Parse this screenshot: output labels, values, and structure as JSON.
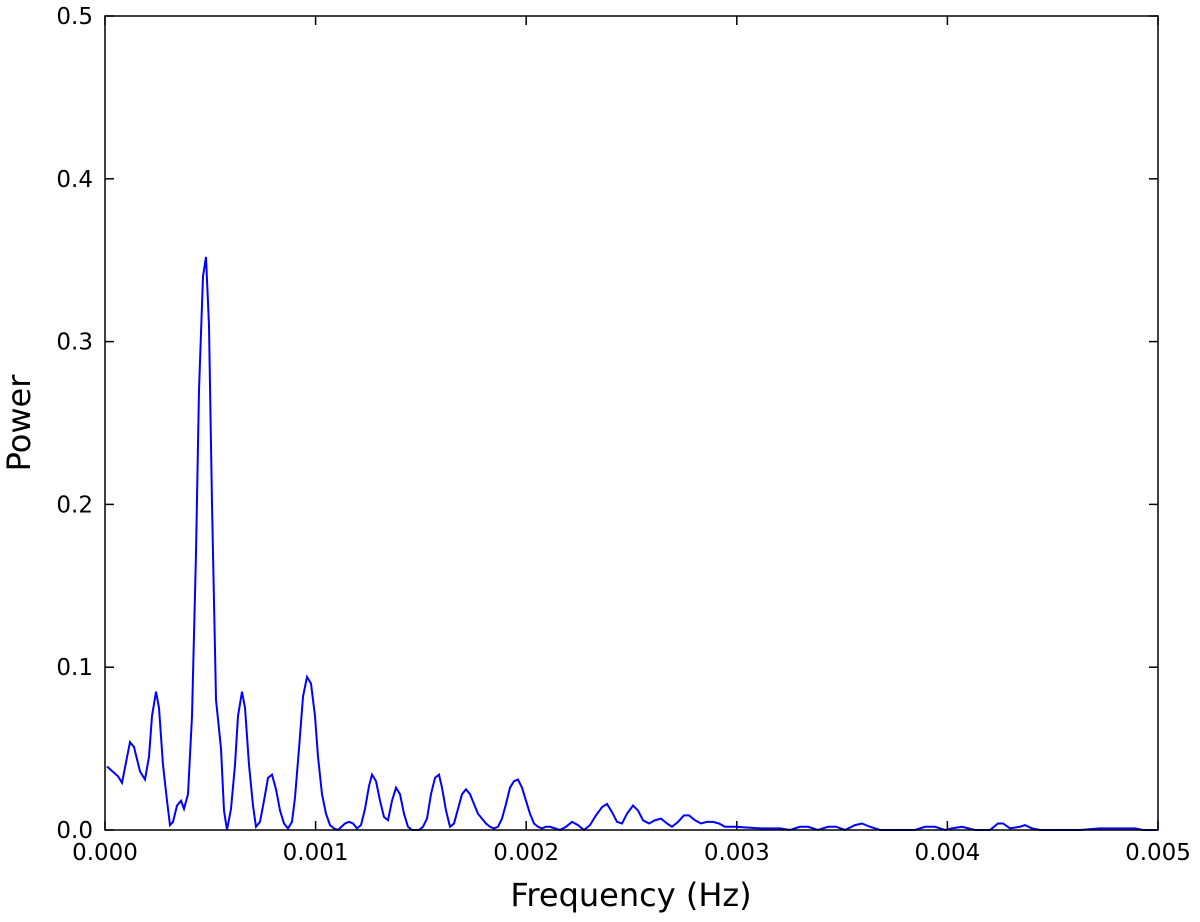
{
  "chart_data": {
    "type": "line",
    "xlabel": "Frequency (Hz)",
    "ylabel": "Power",
    "xlim": [
      0,
      0.005
    ],
    "ylim": [
      0,
      0.5
    ],
    "xticks": [
      {
        "value": 0,
        "label": "0.000"
      },
      0.001,
      0.002,
      0.003,
      0.004,
      0.005
    ],
    "yticks": [
      {
        "value": 0,
        "label": "0.0"
      },
      0.1,
      0.2,
      0.3,
      0.4,
      0.5
    ],
    "grid": false,
    "series": [
      {
        "name": "Power",
        "color": "#0000ff",
        "x": [
          9.5e-06,
          6.17e-05,
          8.07e-05,
          0.0001187,
          0.0001377,
          0.0001662,
          0.0001899,
          0.0002089,
          0.0002232,
          0.0002422,
          0.0002564,
          0.0002754,
          0.0002944,
          0.0003086,
          0.0003229,
          0.0003419,
          0.0003609,
          0.0003751,
          0.0003941,
          0.0004131,
          0.0004321,
          0.0004463,
          0.0004653,
          0.0004796,
          0.0004938,
          0.0005081,
          0.0005271,
          0.0005508,
          0.000565,
          0.0005793,
          0.0005983,
          0.0006173,
          0.0006315,
          0.0006505,
          0.0006648,
          0.0006838,
          0.0007027,
          0.000717,
          0.000736,
          0.000755,
          0.000774,
          0.000793,
          0.000812,
          0.000831,
          0.0008499,
          0.0008689,
          0.0008879,
          0.0009022,
          0.0009212,
          0.0009402,
          0.0009592,
          0.0009781,
          0.0009971,
          0.0010114,
          0.0010304,
          0.0010494,
          0.0010684,
          0.0010874,
          0.0011064,
          0.0011396,
          0.0011586,
          0.0011776,
          0.0011966,
          0.0012156,
          0.0012346,
          0.0012536,
          0.0012678,
          0.0012868,
          0.0013058,
          0.0013248,
          0.0013438,
          0.0013628,
          0.0013818,
          0.0014007,
          0.0014197,
          0.0014387,
          0.0014577,
          0.001491,
          0.00151,
          0.001529,
          0.0015479,
          0.0015669,
          0.0015859,
          0.0016002,
          0.0016192,
          0.0016382,
          0.0016572,
          0.0016761,
          0.0016951,
          0.0017141,
          0.0017331,
          0.0017521,
          0.0017711,
          0.0017901,
          0.0018091,
          0.0018281,
          0.0018471,
          0.0018661,
          0.0018851,
          0.0019041,
          0.0019231,
          0.0019421,
          0.001961,
          0.00198,
          0.001999,
          0.002018,
          0.002037,
          0.002056,
          0.002075,
          0.002094,
          0.002113,
          0.0021367,
          0.0021605,
          0.002189,
          0.0022175,
          0.0022459,
          0.0022744,
          0.0023029,
          0.0023314,
          0.0023599,
          0.0023836,
          0.0024074,
          0.0024311,
          0.0024549,
          0.0024786,
          0.0025071,
          0.0025308,
          0.0025546,
          0.0025831,
          0.0026116,
          0.0026401,
          0.0026685,
          0.0026923,
          0.0027208,
          0.0027493,
          0.002773,
          0.0028015,
          0.00283,
          0.0028585,
          0.002887,
          0.0029155,
          0.0029439,
          0.0029914,
          0.0031101,
          0.0032051,
          0.0032526,
          0.0033001,
          0.0033381,
          0.0033855,
          0.003433,
          0.003471,
          0.0035137,
          0.0035612,
          0.0035945,
          0.0036324,
          0.0036799,
          0.0037749,
          0.0038461,
          0.0038936,
          0.0039411,
          0.0039886,
          0.0040218,
          0.0040693,
          0.004131,
          0.0042022,
          0.0042402,
          0.004264,
          0.0042972,
          0.0043447,
          0.0043684,
          0.0044017,
          0.0044397,
          0.0045346,
          0.0046296,
          0.0047246,
          0.0048195,
          0.0048907,
          0.0049287,
          0.005
        ],
        "values": [
          0.039,
          0.033,
          0.029,
          0.054,
          0.051,
          0.036,
          0.031,
          0.045,
          0.07,
          0.085,
          0.075,
          0.04,
          0.018,
          0.003,
          0.005,
          0.015,
          0.018,
          0.013,
          0.022,
          0.07,
          0.17,
          0.27,
          0.34,
          0.352,
          0.31,
          0.2,
          0.08,
          0.05,
          0.012,
          0.0,
          0.013,
          0.04,
          0.07,
          0.085,
          0.075,
          0.04,
          0.015,
          0.002,
          0.005,
          0.018,
          0.032,
          0.034,
          0.025,
          0.012,
          0.004,
          0.001,
          0.005,
          0.02,
          0.05,
          0.082,
          0.094,
          0.09,
          0.07,
          0.045,
          0.022,
          0.01,
          0.003,
          0.001,
          0.0,
          0.004,
          0.005,
          0.004,
          0.001,
          0.003,
          0.013,
          0.027,
          0.034,
          0.03,
          0.018,
          0.008,
          0.006,
          0.018,
          0.026,
          0.022,
          0.01,
          0.002,
          0.0,
          0.0,
          0.002,
          0.007,
          0.022,
          0.032,
          0.034,
          0.026,
          0.012,
          0.002,
          0.004,
          0.013,
          0.022,
          0.025,
          0.022,
          0.016,
          0.01,
          0.007,
          0.004,
          0.002,
          0.001,
          0.002,
          0.007,
          0.016,
          0.026,
          0.03,
          0.031,
          0.026,
          0.018,
          0.01,
          0.004,
          0.002,
          0.001,
          0.002,
          0.002,
          0.001,
          0.0,
          0.002,
          0.005,
          0.003,
          0.0,
          0.003,
          0.009,
          0.014,
          0.016,
          0.011,
          0.005,
          0.004,
          0.01,
          0.015,
          0.012,
          0.006,
          0.004,
          0.006,
          0.007,
          0.004,
          0.002,
          0.005,
          0.009,
          0.009,
          0.006,
          0.004,
          0.005,
          0.005,
          0.004,
          0.002,
          0.002,
          0.001,
          0.001,
          0.0,
          0.002,
          0.002,
          0.0,
          0.002,
          0.002,
          0.0,
          0.003,
          0.004,
          0.002,
          0.0,
          0.0,
          0.0,
          0.002,
          0.002,
          0.0,
          0.001,
          0.002,
          0.0,
          0.0,
          0.004,
          0.004,
          0.001,
          0.002,
          0.003,
          0.001,
          0.0,
          0.0,
          0.0,
          0.001,
          0.001,
          0.001,
          0.0,
          0.0
        ]
      }
    ]
  }
}
